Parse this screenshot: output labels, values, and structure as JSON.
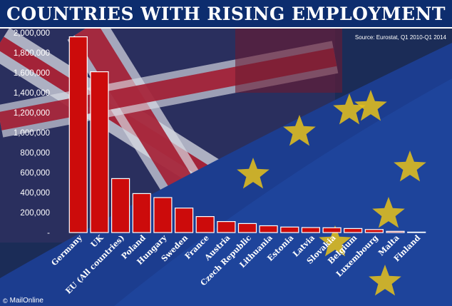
{
  "title": "COUNTRIES WITH RISING EMPLOYMENT",
  "source": "Source: Eurostat, Q1 2010-Q1 2014",
  "credit": "MailOnline",
  "credit_icon": "copyright-icon",
  "colors": {
    "bar": "#cc0b0b",
    "bar_stroke": "#ffffff",
    "title_bar": "#0d2d6e",
    "eu_blue": "#1c3d8f",
    "uk_red": "#a3142a",
    "star": "#e8c21a"
  },
  "chart_data": {
    "type": "bar",
    "title": "COUNTRIES WITH RISING EMPLOYMENT",
    "xlabel": "",
    "ylabel": "",
    "ylim": [
      0,
      2000000
    ],
    "yticks": [
      0,
      200000,
      400000,
      600000,
      800000,
      1000000,
      1200000,
      1400000,
      1600000,
      1800000,
      2000000
    ],
    "ytick_labels": [
      "-",
      "200,000",
      "400,000",
      "600,000",
      "800,000",
      "1,000,000",
      "1,200,000",
      "1,400,000",
      "1,600,000",
      "1,800,000",
      "2,000,000"
    ],
    "grid": false,
    "legend": "none",
    "categories": [
      "Germany",
      "UK",
      "EU (All countries)",
      "Poland",
      "Hungary",
      "Sweden",
      "France",
      "Austria",
      "Czech Republic",
      "Lithuania",
      "Estonia",
      "Latvia",
      "Slovakia",
      "Belgium",
      "Luxembourg",
      "Malta",
      "Finland"
    ],
    "values": [
      1960000,
      1610000,
      540000,
      390000,
      350000,
      245000,
      160000,
      110000,
      90000,
      68000,
      55000,
      50000,
      48000,
      40000,
      30000,
      12000,
      4000
    ]
  }
}
